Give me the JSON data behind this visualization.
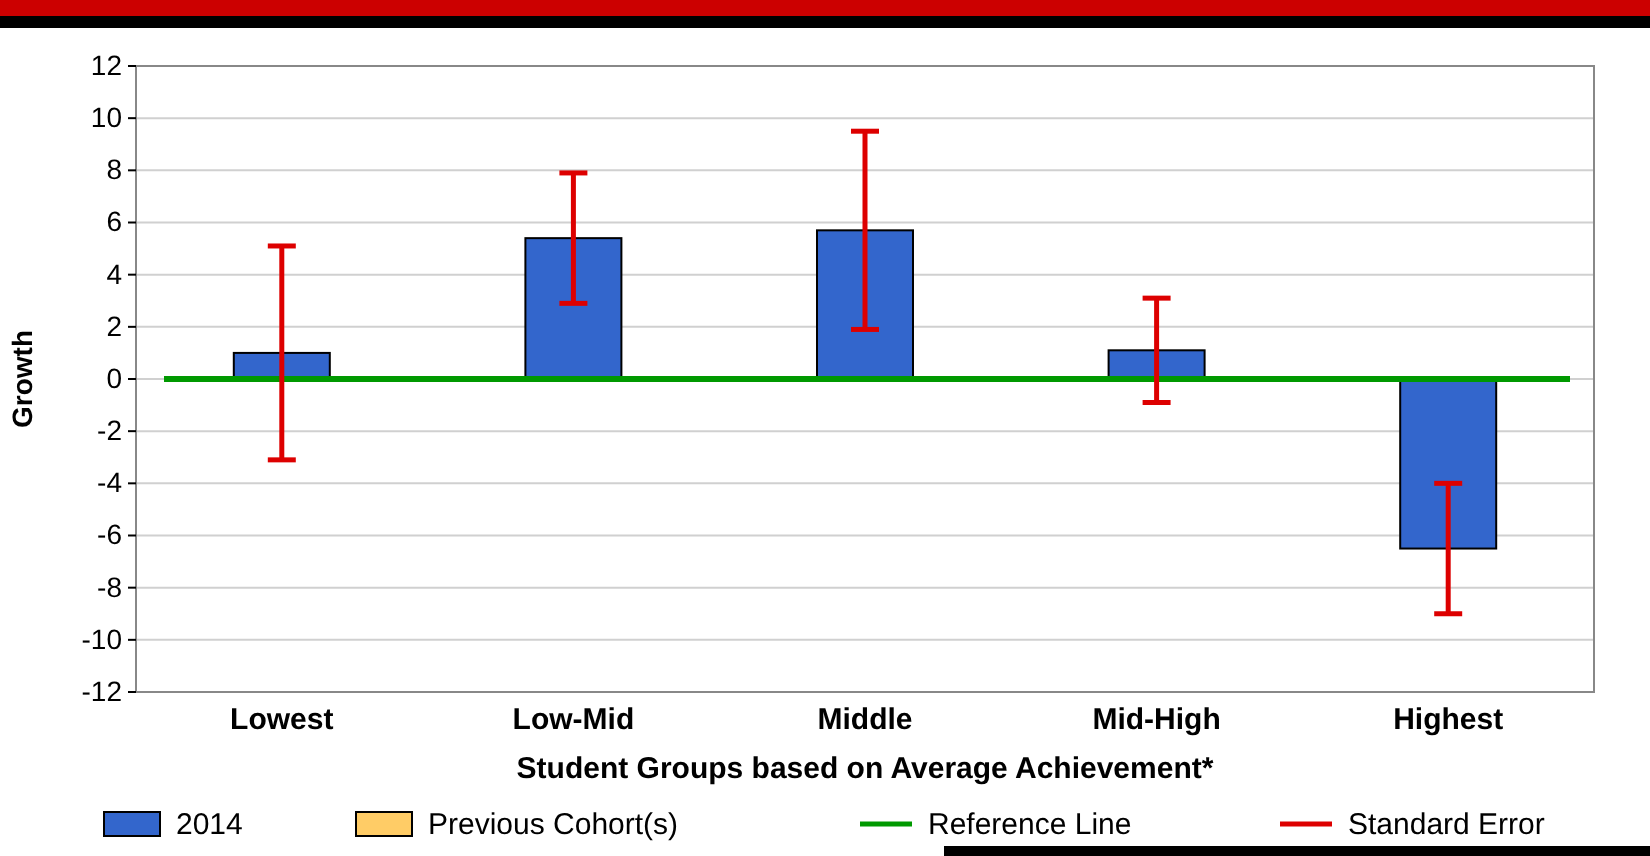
{
  "chart_data": {
    "type": "bar",
    "xlabel": "Student Groups based on Average Achievement*",
    "ylabel": "Growth",
    "categories": [
      "Lowest",
      "Low-Mid",
      "Middle",
      "Mid-High",
      "Highest"
    ],
    "series": [
      {
        "name": "2014",
        "color": "#3366cc",
        "values": [
          1.0,
          5.4,
          5.7,
          1.1,
          -6.5
        ],
        "errors": [
          [
            -3.1,
            5.1
          ],
          [
            2.9,
            7.9
          ],
          [
            1.9,
            9.5
          ],
          [
            -0.9,
            3.1
          ],
          [
            -9.0,
            -4.0
          ]
        ]
      },
      {
        "name": "Previous Cohort(s)",
        "color": "#ffcc66",
        "values": [
          null,
          null,
          null,
          null,
          null
        ]
      }
    ],
    "ylim": [
      -12,
      12
    ],
    "yticks": [
      -12,
      -10,
      -8,
      -6,
      -4,
      -2,
      0,
      2,
      4,
      6,
      8,
      10,
      12
    ],
    "grid": "y",
    "legend": "bottom",
    "ref_lines": [
      {
        "axis": "y",
        "value": 0,
        "label": "Reference Line",
        "color": "#009900"
      }
    ],
    "annotations": [
      "Standard Error"
    ]
  }
}
